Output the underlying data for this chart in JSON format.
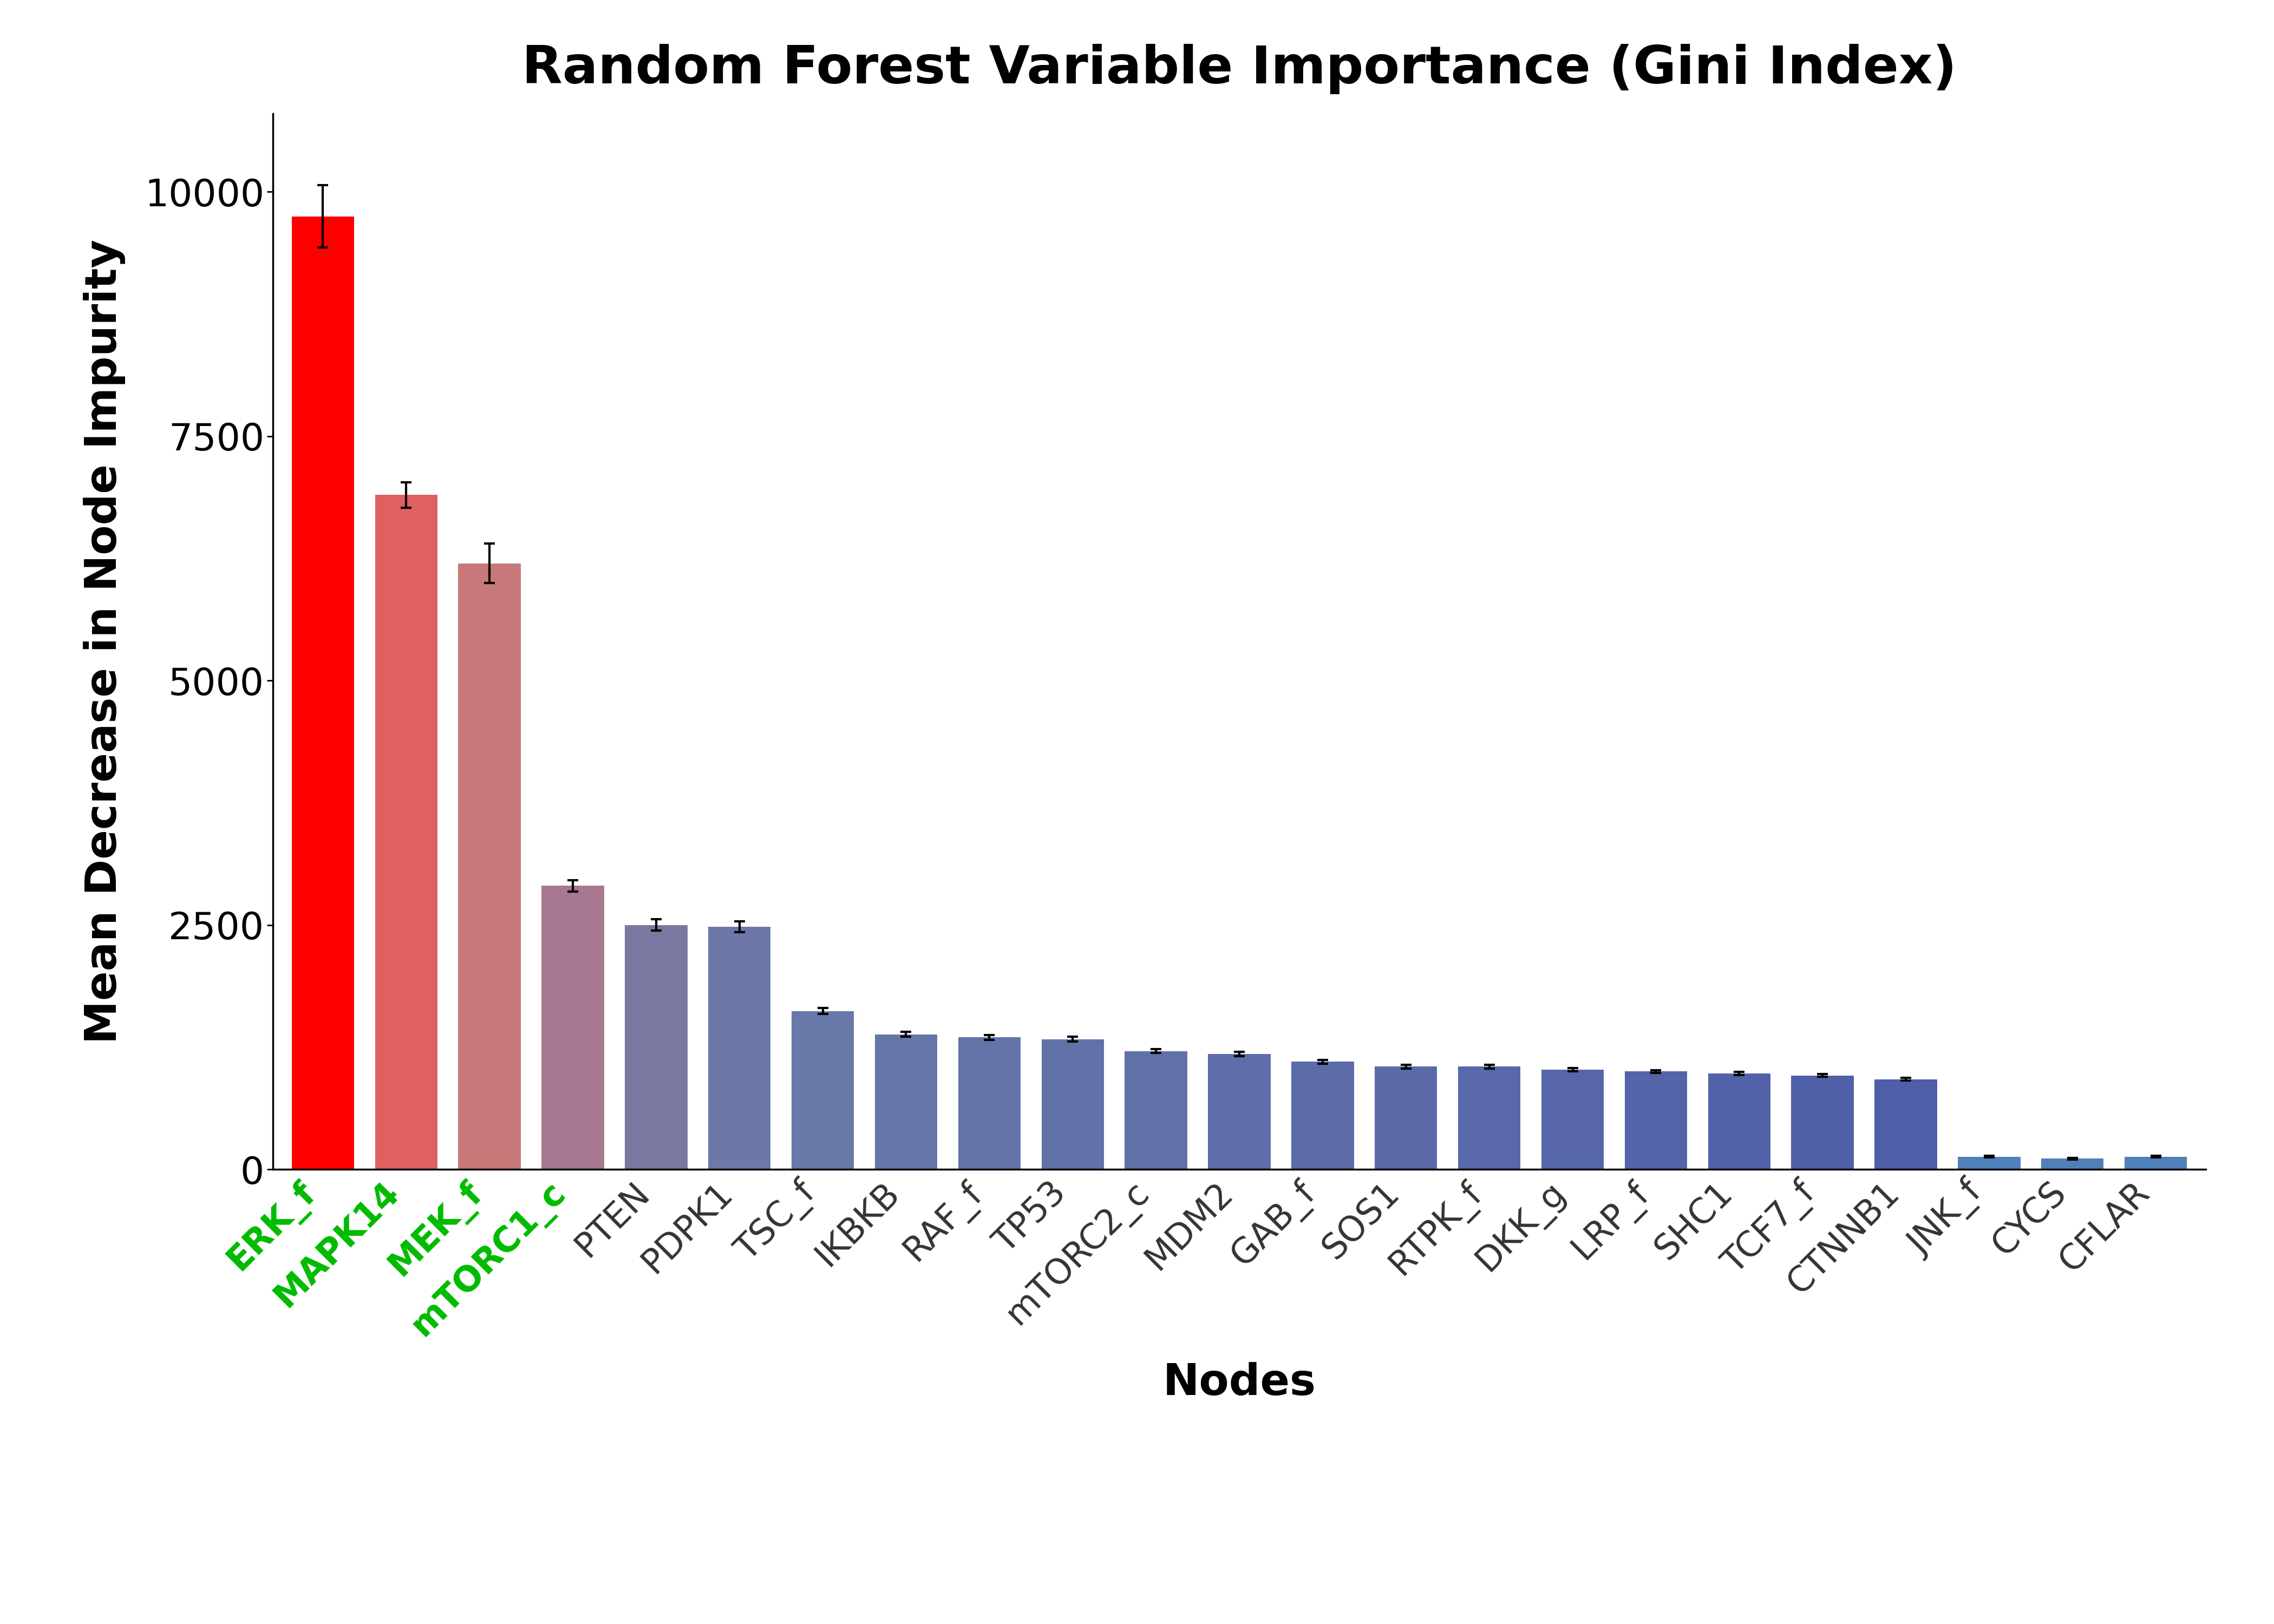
{
  "title": "Random Forest Variable Importance (Gini Index)",
  "ylabel": "Mean Decrease in Node Impurity",
  "xlabel": "Nodes",
  "categories": [
    "ERK_f",
    "MAPK14",
    "MEK_f",
    "mTORC1_c",
    "PTEN",
    "PDPK1",
    "TSC_f",
    "IKBKB",
    "RAF_f",
    "TP53",
    "mTORC2_c",
    "MDM2",
    "GAB_f",
    "SOS1",
    "RTPK_f",
    "DKK_g",
    "LRP_f",
    "SHC1",
    "TCF7_f",
    "CTNNB1",
    "JNK_f",
    "CYCS",
    "CFLAR"
  ],
  "values": [
    9750,
    6900,
    6200,
    2900,
    2500,
    2480,
    1620,
    1380,
    1350,
    1330,
    1210,
    1180,
    1100,
    1050,
    1050,
    1020,
    1000,
    980,
    960,
    920,
    130,
    110,
    130
  ],
  "errors": [
    320,
    130,
    200,
    60,
    60,
    55,
    30,
    25,
    25,
    25,
    20,
    20,
    18,
    18,
    18,
    18,
    16,
    16,
    14,
    14,
    10,
    8,
    8
  ],
  "bar_colors": [
    "#FF0000",
    "#E06060",
    "#C87878",
    "#A87890",
    "#7878A0",
    "#6E78A8",
    "#6878A8",
    "#6676A8",
    "#6474A8",
    "#6272A8",
    "#6070A8",
    "#5E6EA8",
    "#5C6CA8",
    "#5A6AA8",
    "#5868A8",
    "#5666A8",
    "#5464A8",
    "#5262A8",
    "#5060A8",
    "#4E5EA8",
    "#5080B8",
    "#5080B8",
    "#5080B8"
  ],
  "green_labels": [
    "ERK_f",
    "MAPK14",
    "MEK_f",
    "mTORC1_c"
  ],
  "label_color_green": "#00BB00",
  "label_color_dark": "#333333",
  "background_color": "#FFFFFF",
  "ylim": [
    0,
    10800
  ],
  "yticks": [
    0,
    2500,
    5000,
    7500,
    10000
  ],
  "title_fontsize": 70,
  "axis_label_fontsize": 58,
  "tick_fontsize": 50,
  "xtick_fontsize": 46,
  "bar_width": 0.75
}
